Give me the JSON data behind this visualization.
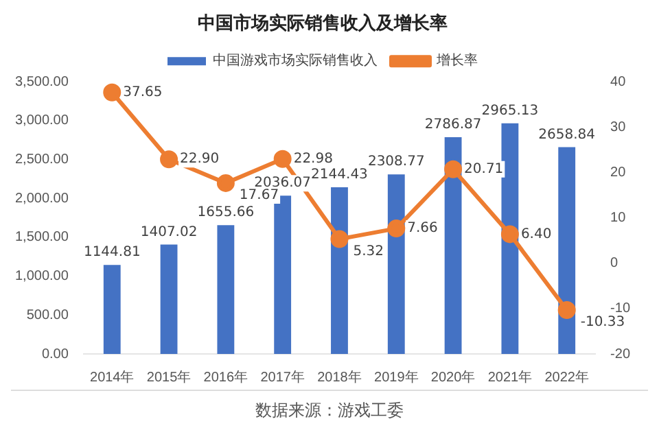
{
  "chart_data": {
    "type": "bar",
    "title": "中国市场实际销售收入及增长率",
    "categories": [
      "2014年",
      "2015年",
      "2016年",
      "2017年",
      "2018年",
      "2019年",
      "2020年",
      "2021年",
      "2022年"
    ],
    "series": [
      {
        "name": "中国游戏市场实际销售收入",
        "color": "#4472c4",
        "values": [
          1144.81,
          1407.02,
          1655.66,
          2036.07,
          2144.43,
          2308.77,
          2786.87,
          2965.13,
          2658.84
        ],
        "value_labels": [
          "1144.81",
          "1407.02",
          "1655.66",
          "2036.07",
          "2144.43",
          "2308.77",
          "2786.87",
          "2965.13",
          "2658.84"
        ]
      },
      {
        "name": "增长率",
        "type": "line",
        "axis": "y2",
        "color": "#ed7d31",
        "marker": "circle",
        "values": [
          37.65,
          22.9,
          17.67,
          22.98,
          5.32,
          7.66,
          20.71,
          6.4,
          -10.33
        ],
        "value_labels": [
          "37.65",
          "22.90",
          "17.67",
          "22.98",
          "5.32",
          "7.66",
          "20.71",
          "6.40",
          "-10.33"
        ]
      }
    ],
    "ylim": [
      0,
      3500
    ],
    "yticks": [
      {
        "value": 0,
        "label": "0.00"
      },
      {
        "value": 500,
        "label": "500.00"
      },
      {
        "value": 1000,
        "label": "1,000.00"
      },
      {
        "value": 1500,
        "label": "1,500.00"
      },
      {
        "value": 2000,
        "label": "2,000.00"
      },
      {
        "value": 2500,
        "label": "2,500.00"
      },
      {
        "value": 3000,
        "label": "3,000.00"
      },
      {
        "value": 3500,
        "label": "3,500.00"
      }
    ],
    "y2lim": [
      -20,
      40
    ],
    "y2ticks": [
      -20,
      -10,
      0,
      10,
      20,
      30,
      40
    ],
    "grid": false,
    "legend": "top",
    "annotations": [
      "数据来源：游戏工委"
    ]
  }
}
